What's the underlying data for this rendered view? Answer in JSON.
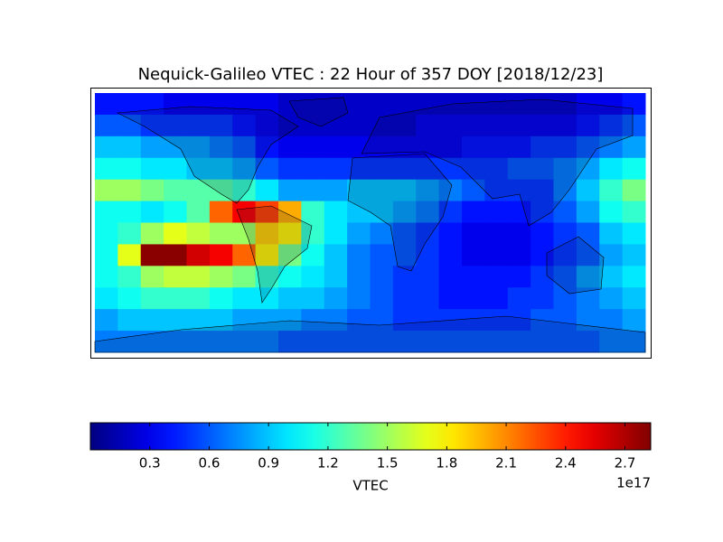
{
  "chart_data": {
    "type": "heatmap",
    "title": "Nequick-Galileo VTEC : 22 Hour of 357 DOY [2018/12/23]",
    "colormap": "jet",
    "values": [
      [
        0.4,
        0.4,
        0.4,
        0.3,
        0.3,
        0.3,
        0.3,
        0.3,
        0.2,
        0.2,
        0.2,
        0.2,
        0.2,
        0.2,
        0.2,
        0.2,
        0.2,
        0.2,
        0.2,
        0.2,
        0.2,
        0.3,
        0.3,
        0.4
      ],
      [
        0.6,
        0.6,
        0.5,
        0.5,
        0.5,
        0.5,
        0.4,
        0.3,
        0.2,
        0.2,
        0.2,
        0.2,
        0.2,
        0.2,
        0.3,
        0.3,
        0.3,
        0.3,
        0.3,
        0.3,
        0.3,
        0.4,
        0.5,
        0.6
      ],
      [
        0.9,
        0.9,
        0.8,
        0.8,
        0.8,
        0.7,
        0.6,
        0.4,
        0.3,
        0.3,
        0.3,
        0.3,
        0.3,
        0.3,
        0.3,
        0.3,
        0.4,
        0.4,
        0.4,
        0.5,
        0.5,
        0.6,
        0.7,
        0.8
      ],
      [
        1.1,
        1.1,
        1.0,
        1.0,
        0.9,
        0.9,
        0.8,
        0.6,
        0.5,
        0.5,
        0.5,
        0.5,
        0.5,
        0.5,
        0.5,
        0.5,
        0.5,
        0.5,
        0.6,
        0.6,
        0.7,
        0.8,
        1.0,
        1.1
      ],
      [
        1.5,
        1.5,
        1.4,
        1.3,
        1.3,
        1.3,
        1.2,
        1.0,
        0.8,
        0.8,
        0.8,
        0.9,
        0.9,
        0.9,
        0.8,
        0.7,
        0.6,
        0.5,
        0.5,
        0.5,
        0.7,
        0.9,
        1.2,
        1.4
      ],
      [
        1.1,
        1.1,
        1.0,
        1.1,
        1.3,
        2.2,
        2.5,
        2.3,
        2.0,
        1.2,
        1.0,
        0.9,
        0.9,
        0.8,
        0.7,
        0.5,
        0.4,
        0.4,
        0.4,
        0.5,
        0.6,
        0.8,
        1.1,
        1.2
      ],
      [
        1.1,
        1.2,
        1.5,
        1.7,
        1.6,
        1.5,
        1.5,
        1.9,
        1.8,
        1.2,
        1.0,
        0.8,
        0.7,
        0.6,
        0.5,
        0.4,
        0.3,
        0.3,
        0.3,
        0.4,
        0.5,
        0.6,
        0.9,
        1.0
      ],
      [
        1.1,
        1.7,
        2.8,
        2.8,
        2.6,
        2.5,
        2.2,
        1.8,
        1.4,
        1.1,
        0.9,
        0.7,
        0.6,
        0.6,
        0.5,
        0.4,
        0.3,
        0.3,
        0.3,
        0.4,
        0.5,
        0.6,
        0.8,
        0.9
      ],
      [
        1.1,
        1.2,
        1.5,
        1.6,
        1.6,
        1.5,
        1.4,
        1.2,
        1.1,
        1.0,
        0.9,
        0.7,
        0.6,
        0.5,
        0.5,
        0.4,
        0.4,
        0.4,
        0.4,
        0.5,
        0.6,
        0.8,
        0.9,
        1.0
      ],
      [
        1.0,
        1.1,
        1.2,
        1.2,
        1.2,
        1.1,
        1.0,
        1.0,
        0.9,
        0.9,
        0.8,
        0.7,
        0.6,
        0.5,
        0.5,
        0.4,
        0.4,
        0.4,
        0.5,
        0.5,
        0.6,
        0.7,
        0.8,
        0.9
      ],
      [
        0.8,
        0.9,
        0.9,
        0.9,
        0.9,
        0.9,
        0.8,
        0.8,
        0.8,
        0.7,
        0.7,
        0.6,
        0.6,
        0.5,
        0.5,
        0.5,
        0.5,
        0.5,
        0.5,
        0.6,
        0.6,
        0.7,
        0.7,
        0.8
      ],
      [
        0.7,
        0.7,
        0.7,
        0.7,
        0.7,
        0.7,
        0.7,
        0.7,
        0.6,
        0.6,
        0.6,
        0.6,
        0.6,
        0.6,
        0.6,
        0.6,
        0.6,
        0.6,
        0.6,
        0.6,
        0.6,
        0.6,
        0.7,
        0.7
      ]
    ],
    "clim": [
      0,
      2.83
    ],
    "cticks": [
      0.3,
      0.6,
      0.9,
      1.2,
      1.5,
      1.8,
      2.1,
      2.4,
      2.7
    ],
    "colorbar_label": "VTEC",
    "colorbar_offset": "1e17"
  }
}
